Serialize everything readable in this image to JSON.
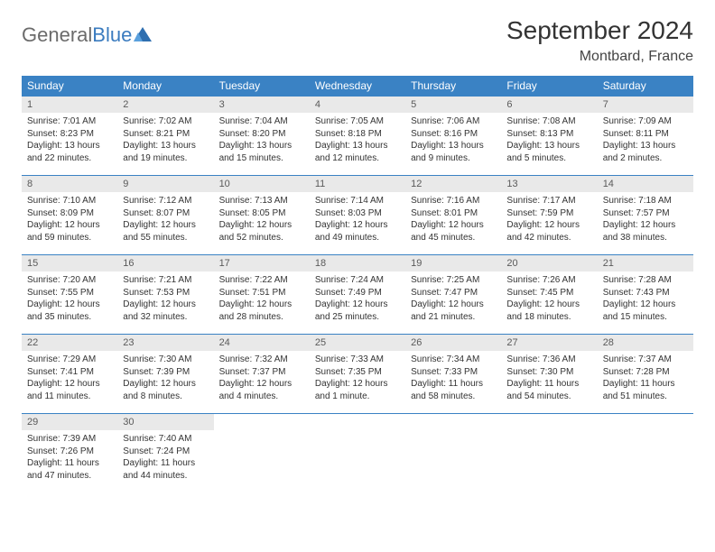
{
  "brand": {
    "word1": "General",
    "word2": "Blue"
  },
  "title": "September 2024",
  "location": "Montbard, France",
  "colors": {
    "header_bg": "#3a82c4",
    "header_text": "#ffffff",
    "daynum_bg": "#e9e9e9",
    "daynum_text": "#5a5a5a",
    "body_text": "#333333",
    "row_border": "#3a82c4",
    "logo_general": "#6b6b6b",
    "logo_blue": "#3a7bbf",
    "title_color": "#333333",
    "location_color": "#444444",
    "page_bg": "#ffffff"
  },
  "typography": {
    "month_title_size": 28,
    "location_size": 16,
    "weekday_size": 12,
    "daynum_size": 11,
    "body_size": 10
  },
  "weekdays": [
    "Sunday",
    "Monday",
    "Tuesday",
    "Wednesday",
    "Thursday",
    "Friday",
    "Saturday"
  ],
  "days": [
    {
      "n": "1",
      "sr": "Sunrise: 7:01 AM",
      "ss": "Sunset: 8:23 PM",
      "dl": "Daylight: 13 hours and 22 minutes."
    },
    {
      "n": "2",
      "sr": "Sunrise: 7:02 AM",
      "ss": "Sunset: 8:21 PM",
      "dl": "Daylight: 13 hours and 19 minutes."
    },
    {
      "n": "3",
      "sr": "Sunrise: 7:04 AM",
      "ss": "Sunset: 8:20 PM",
      "dl": "Daylight: 13 hours and 15 minutes."
    },
    {
      "n": "4",
      "sr": "Sunrise: 7:05 AM",
      "ss": "Sunset: 8:18 PM",
      "dl": "Daylight: 13 hours and 12 minutes."
    },
    {
      "n": "5",
      "sr": "Sunrise: 7:06 AM",
      "ss": "Sunset: 8:16 PM",
      "dl": "Daylight: 13 hours and 9 minutes."
    },
    {
      "n": "6",
      "sr": "Sunrise: 7:08 AM",
      "ss": "Sunset: 8:13 PM",
      "dl": "Daylight: 13 hours and 5 minutes."
    },
    {
      "n": "7",
      "sr": "Sunrise: 7:09 AM",
      "ss": "Sunset: 8:11 PM",
      "dl": "Daylight: 13 hours and 2 minutes."
    },
    {
      "n": "8",
      "sr": "Sunrise: 7:10 AM",
      "ss": "Sunset: 8:09 PM",
      "dl": "Daylight: 12 hours and 59 minutes."
    },
    {
      "n": "9",
      "sr": "Sunrise: 7:12 AM",
      "ss": "Sunset: 8:07 PM",
      "dl": "Daylight: 12 hours and 55 minutes."
    },
    {
      "n": "10",
      "sr": "Sunrise: 7:13 AM",
      "ss": "Sunset: 8:05 PM",
      "dl": "Daylight: 12 hours and 52 minutes."
    },
    {
      "n": "11",
      "sr": "Sunrise: 7:14 AM",
      "ss": "Sunset: 8:03 PM",
      "dl": "Daylight: 12 hours and 49 minutes."
    },
    {
      "n": "12",
      "sr": "Sunrise: 7:16 AM",
      "ss": "Sunset: 8:01 PM",
      "dl": "Daylight: 12 hours and 45 minutes."
    },
    {
      "n": "13",
      "sr": "Sunrise: 7:17 AM",
      "ss": "Sunset: 7:59 PM",
      "dl": "Daylight: 12 hours and 42 minutes."
    },
    {
      "n": "14",
      "sr": "Sunrise: 7:18 AM",
      "ss": "Sunset: 7:57 PM",
      "dl": "Daylight: 12 hours and 38 minutes."
    },
    {
      "n": "15",
      "sr": "Sunrise: 7:20 AM",
      "ss": "Sunset: 7:55 PM",
      "dl": "Daylight: 12 hours and 35 minutes."
    },
    {
      "n": "16",
      "sr": "Sunrise: 7:21 AM",
      "ss": "Sunset: 7:53 PM",
      "dl": "Daylight: 12 hours and 32 minutes."
    },
    {
      "n": "17",
      "sr": "Sunrise: 7:22 AM",
      "ss": "Sunset: 7:51 PM",
      "dl": "Daylight: 12 hours and 28 minutes."
    },
    {
      "n": "18",
      "sr": "Sunrise: 7:24 AM",
      "ss": "Sunset: 7:49 PM",
      "dl": "Daylight: 12 hours and 25 minutes."
    },
    {
      "n": "19",
      "sr": "Sunrise: 7:25 AM",
      "ss": "Sunset: 7:47 PM",
      "dl": "Daylight: 12 hours and 21 minutes."
    },
    {
      "n": "20",
      "sr": "Sunrise: 7:26 AM",
      "ss": "Sunset: 7:45 PM",
      "dl": "Daylight: 12 hours and 18 minutes."
    },
    {
      "n": "21",
      "sr": "Sunrise: 7:28 AM",
      "ss": "Sunset: 7:43 PM",
      "dl": "Daylight: 12 hours and 15 minutes."
    },
    {
      "n": "22",
      "sr": "Sunrise: 7:29 AM",
      "ss": "Sunset: 7:41 PM",
      "dl": "Daylight: 12 hours and 11 minutes."
    },
    {
      "n": "23",
      "sr": "Sunrise: 7:30 AM",
      "ss": "Sunset: 7:39 PM",
      "dl": "Daylight: 12 hours and 8 minutes."
    },
    {
      "n": "24",
      "sr": "Sunrise: 7:32 AM",
      "ss": "Sunset: 7:37 PM",
      "dl": "Daylight: 12 hours and 4 minutes."
    },
    {
      "n": "25",
      "sr": "Sunrise: 7:33 AM",
      "ss": "Sunset: 7:35 PM",
      "dl": "Daylight: 12 hours and 1 minute."
    },
    {
      "n": "26",
      "sr": "Sunrise: 7:34 AM",
      "ss": "Sunset: 7:33 PM",
      "dl": "Daylight: 11 hours and 58 minutes."
    },
    {
      "n": "27",
      "sr": "Sunrise: 7:36 AM",
      "ss": "Sunset: 7:30 PM",
      "dl": "Daylight: 11 hours and 54 minutes."
    },
    {
      "n": "28",
      "sr": "Sunrise: 7:37 AM",
      "ss": "Sunset: 7:28 PM",
      "dl": "Daylight: 11 hours and 51 minutes."
    },
    {
      "n": "29",
      "sr": "Sunrise: 7:39 AM",
      "ss": "Sunset: 7:26 PM",
      "dl": "Daylight: 11 hours and 47 minutes."
    },
    {
      "n": "30",
      "sr": "Sunrise: 7:40 AM",
      "ss": "Sunset: 7:24 PM",
      "dl": "Daylight: 11 hours and 44 minutes."
    }
  ]
}
